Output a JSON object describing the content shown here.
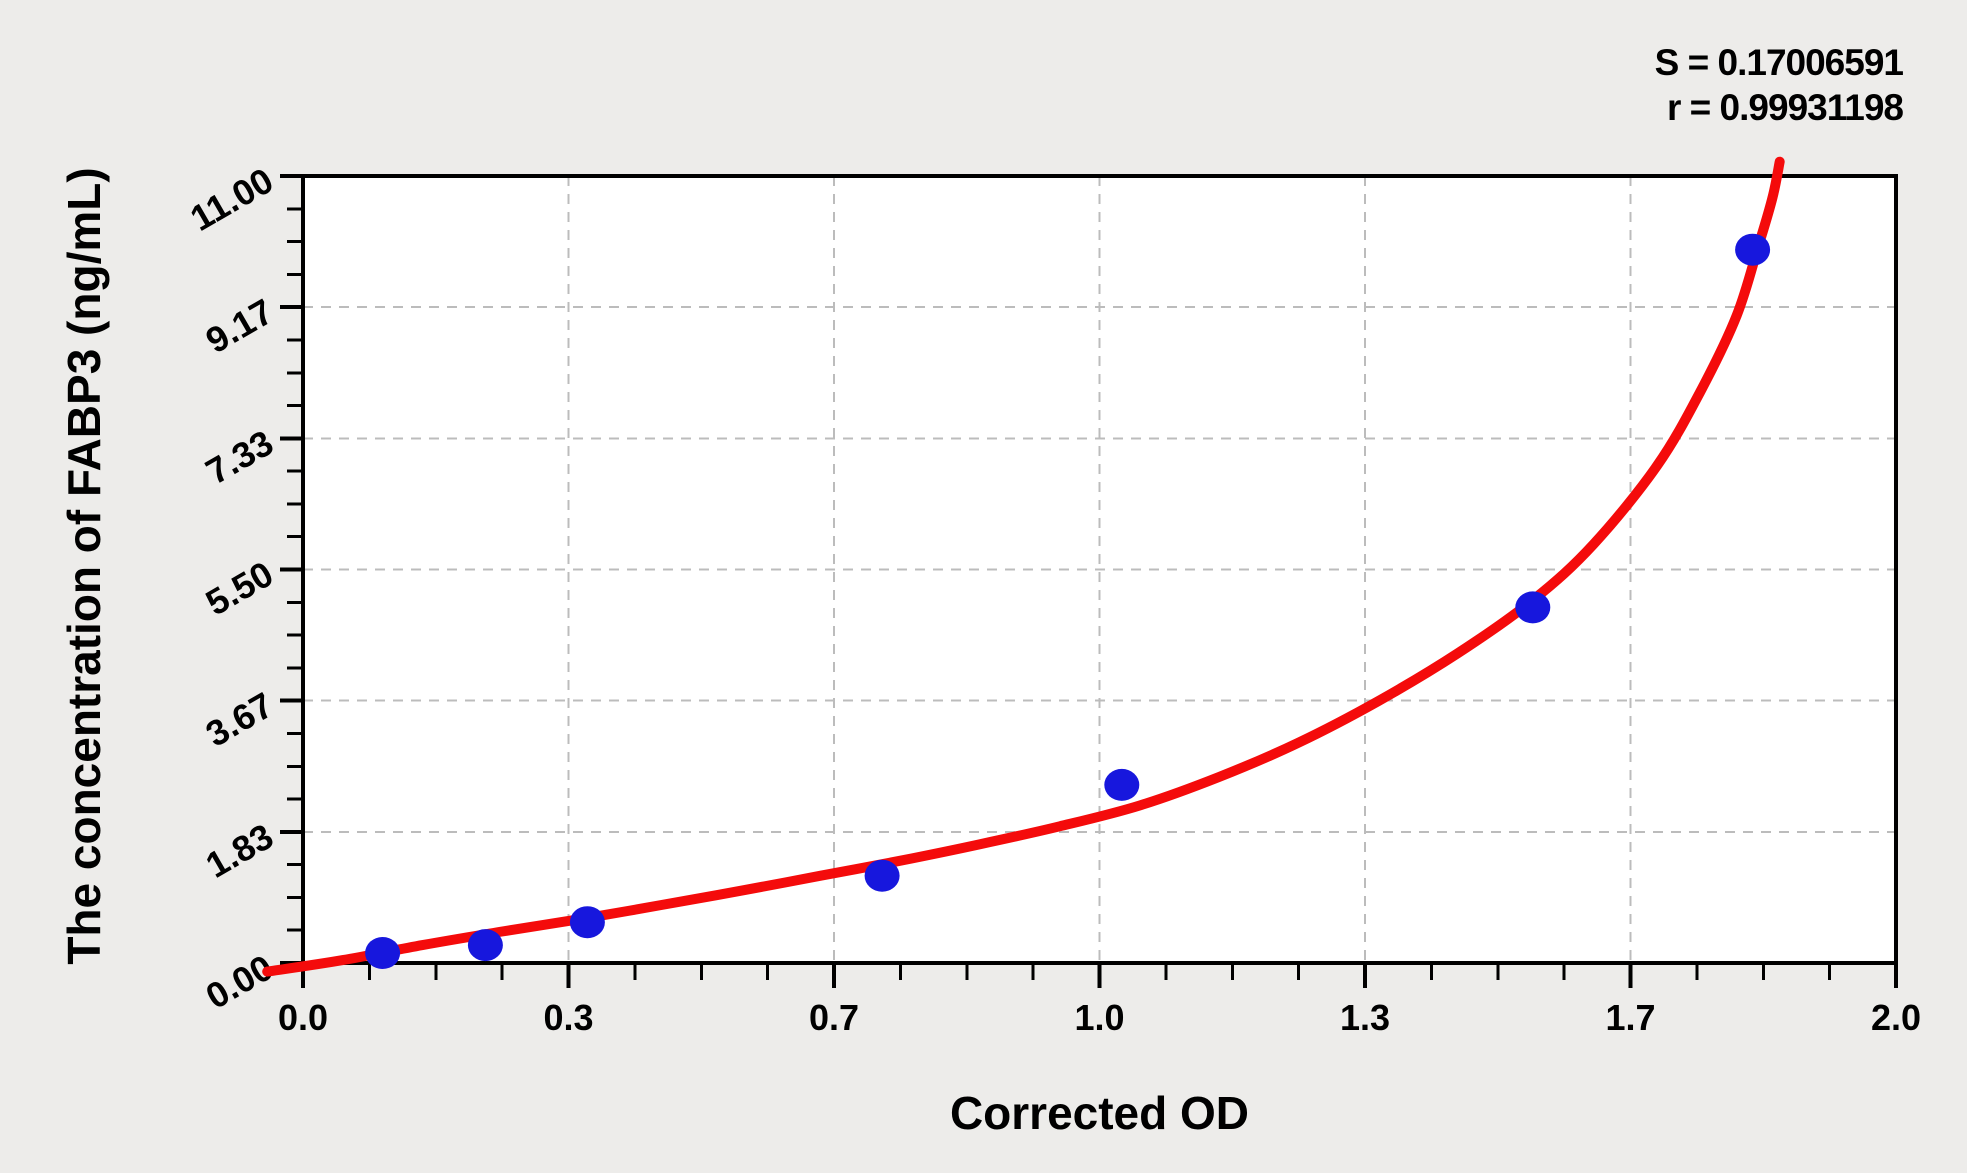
{
  "annotation": {
    "line1": "S = 0.17006591",
    "line2": "r = 0.99931198"
  },
  "chart_data": {
    "type": "scatter",
    "title": "",
    "xlabel": "Corrected OD",
    "ylabel": "The concentration of FABP3 (ng/mL)",
    "xlim": [
      0,
      2.0
    ],
    "ylim": [
      0,
      11.0
    ],
    "grid": true,
    "legend": "none",
    "x_ticks": {
      "values": [
        0,
        0.33333,
        0.66667,
        1.0,
        1.33333,
        1.66667,
        2.0
      ],
      "labels": [
        "0.0",
        "0.3",
        "0.7",
        "1.0",
        "1.3",
        "1.7",
        "2.0"
      ],
      "minor_divisions": 4
    },
    "y_ticks": {
      "values": [
        0,
        1.83333,
        3.66667,
        5.5,
        7.33333,
        9.16667,
        11.0
      ],
      "labels": [
        "0.00",
        "1.83",
        "3.67",
        "5.50",
        "7.33",
        "9.17",
        "11.00"
      ],
      "minor_divisions": 4
    },
    "series": [
      {
        "name": "standard-points",
        "type": "scatter",
        "points": [
          [
            0.1,
            0.14
          ],
          [
            0.229,
            0.25
          ],
          [
            0.357,
            0.57
          ],
          [
            0.727,
            1.22
          ],
          [
            1.028,
            2.49
          ],
          [
            1.544,
            4.97
          ],
          [
            1.82,
            9.97
          ]
        ]
      },
      {
        "name": "fit-curve",
        "type": "line",
        "points": [
          [
            -0.045,
            -0.12
          ],
          [
            0.05,
            0.04
          ],
          [
            0.15,
            0.25
          ],
          [
            0.25,
            0.44
          ],
          [
            0.357,
            0.63
          ],
          [
            0.45,
            0.81
          ],
          [
            0.55,
            1.01
          ],
          [
            0.65,
            1.22
          ],
          [
            0.75,
            1.43
          ],
          [
            0.85,
            1.66
          ],
          [
            0.95,
            1.91
          ],
          [
            1.05,
            2.2
          ],
          [
            1.15,
            2.6
          ],
          [
            1.25,
            3.08
          ],
          [
            1.35,
            3.66
          ],
          [
            1.45,
            4.33
          ],
          [
            1.545,
            5.08
          ],
          [
            1.62,
            5.85
          ],
          [
            1.7,
            6.95
          ],
          [
            1.755,
            8.0
          ],
          [
            1.8,
            9.05
          ],
          [
            1.828,
            10.05
          ],
          [
            1.845,
            10.7
          ],
          [
            1.854,
            11.2
          ]
        ]
      }
    ],
    "stats": {
      "S": "0.17006591",
      "r": "0.99931198"
    }
  },
  "style": {
    "background": "#edecea",
    "plot_background": "#ffffff",
    "axis_color": "#000000",
    "grid_color": "#bcbcbc",
    "curve_color": "#f40b0b",
    "point_color": "#1717dd"
  }
}
